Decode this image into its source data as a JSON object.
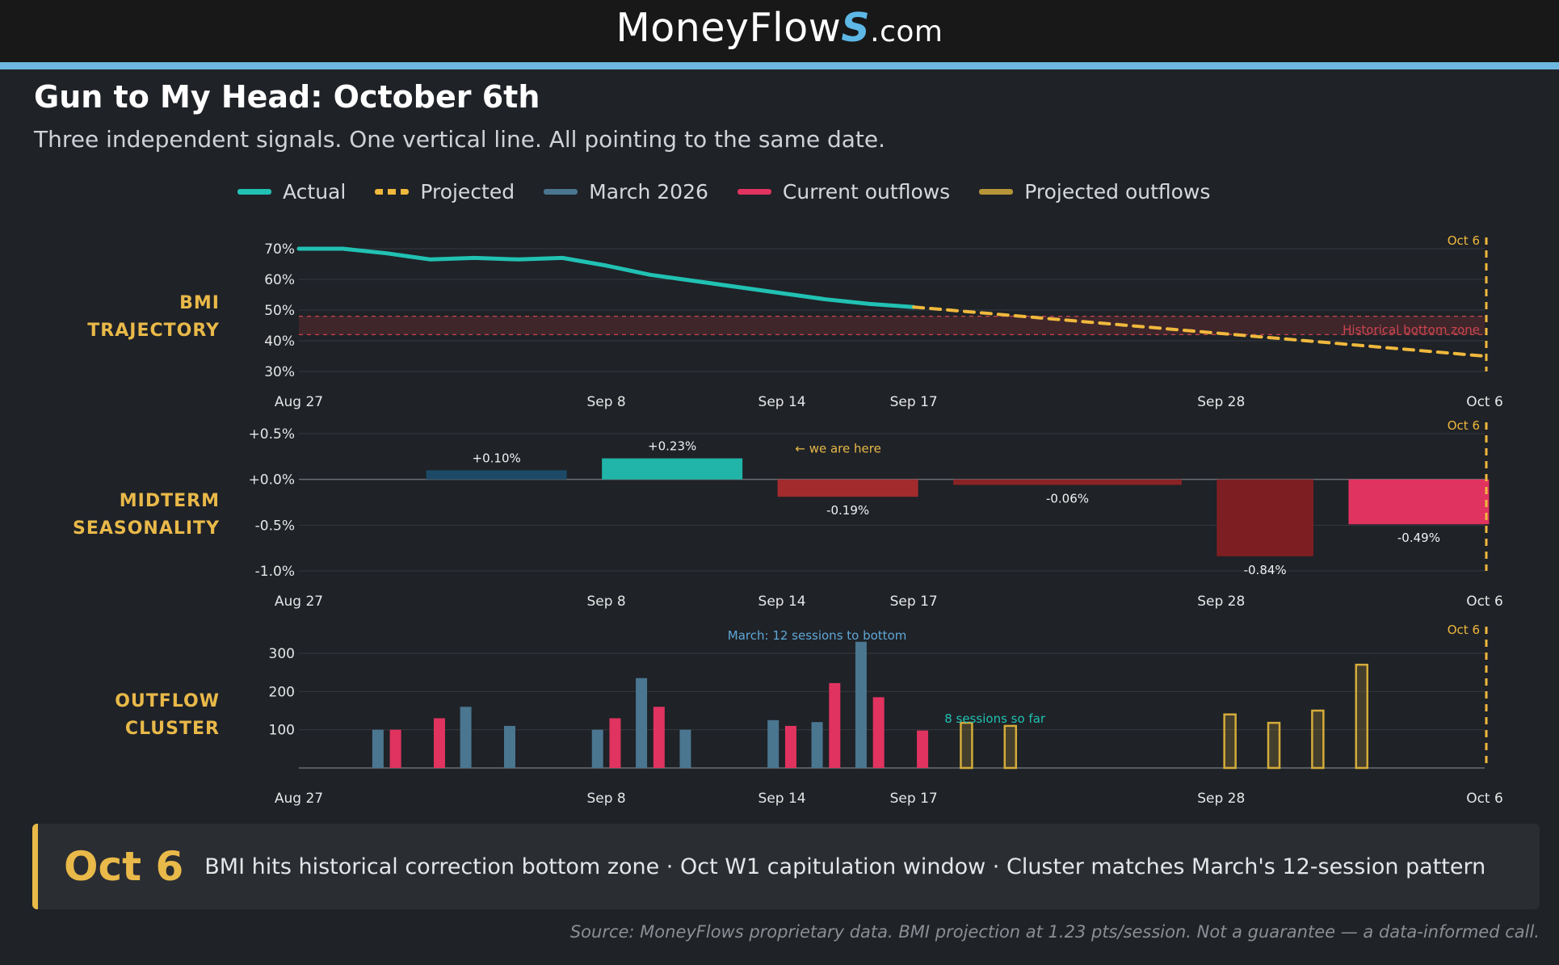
{
  "header": {
    "brand_name": "MoneyFlow",
    "brand_s": "S",
    "brand_tld": ".com",
    "accent_color": "#6db7e0"
  },
  "title": "Gun to My Head: October 6th",
  "subtitle": "Three independent signals. One vertical line. All pointing to the same date.",
  "legend": [
    {
      "label": "Actual",
      "color": "#21c1b3",
      "style": "solid"
    },
    {
      "label": "Projected",
      "color": "#f0b83c",
      "style": "dashed"
    },
    {
      "label": "March 2026",
      "color": "#4a7690",
      "style": "solid"
    },
    {
      "label": "Current outflows",
      "color": "#e0335f",
      "style": "solid"
    },
    {
      "label": "Projected outflows",
      "color": "#b5953a",
      "style": "solid"
    }
  ],
  "chart_data": [
    {
      "type": "line",
      "panel_label": [
        "BMI",
        "TRAJECTORY"
      ],
      "x_tick_labels": [
        "Aug 27",
        "Sep 8",
        "Sep 14",
        "Sep 17",
        "Sep 28",
        "Oct 6"
      ],
      "x_tick_positions": [
        0,
        7,
        11,
        14,
        21,
        27
      ],
      "ylim": [
        30,
        70
      ],
      "y_ticks": [
        70,
        60,
        50,
        40,
        30
      ],
      "y_tick_format": "percent",
      "grid": true,
      "series": [
        {
          "name": "Actual",
          "color": "#21c1b3",
          "x": [
            0,
            1,
            2,
            3,
            4,
            5,
            6,
            7,
            8,
            9,
            10,
            11,
            12,
            13,
            14
          ],
          "values": [
            70,
            70,
            68.5,
            66.5,
            67,
            66.5,
            67,
            64.5,
            61.5,
            59.5,
            57.5,
            55.5,
            53.5,
            52,
            51
          ]
        },
        {
          "name": "Projected",
          "color": "#f0b83c",
          "style": "dashed",
          "x": [
            14,
            27
          ],
          "values": [
            51,
            35
          ]
        }
      ],
      "band": {
        "from": 42,
        "to": 48,
        "label": "Historical bottom zone",
        "color": "#c9454f"
      },
      "marker": {
        "x": 27,
        "label": "Oct 6",
        "color": "#f0b83c"
      }
    },
    {
      "type": "bar",
      "panel_label": [
        "MIDTERM",
        "SEASONALITY"
      ],
      "x_tick_labels": [
        "Aug 27",
        "Sep 8",
        "Sep 14",
        "Sep 17",
        "Sep 28",
        "Oct 6"
      ],
      "x_tick_positions": [
        0,
        7,
        11,
        14,
        21,
        27
      ],
      "ylim": [
        -1.0,
        0.5
      ],
      "y_ticks": [
        0.5,
        0.0,
        -0.5,
        -1.0
      ],
      "y_tick_labels": [
        "+0.5%",
        "+0.0%",
        "-0.5%",
        "-1.0%"
      ],
      "grid": true,
      "bars": [
        {
          "x_start": 2.9,
          "x_end": 6.1,
          "value": 0.1,
          "label": "+0.10%",
          "color": "#1c4a66"
        },
        {
          "x_start": 6.9,
          "x_end": 10.1,
          "value": 0.23,
          "label": "+0.23%",
          "color": "#20b5a8"
        },
        {
          "x_start": 10.9,
          "x_end": 14.1,
          "value": -0.19,
          "label": "-0.19%",
          "color": "#a32b2e"
        },
        {
          "x_start": 14.9,
          "x_end": 20.1,
          "value": -0.06,
          "label": "-0.06%",
          "color": "#8a2326"
        },
        {
          "x_start": 20.9,
          "x_end": 23.1,
          "value": -0.84,
          "label": "-0.84%",
          "color": "#7d1f22"
        },
        {
          "x_start": 23.9,
          "x_end": 27.1,
          "value": -0.49,
          "label": "-0.49%",
          "color": "#e0335f"
        }
      ],
      "annotation": {
        "text": "← we are here",
        "color": "#e9b949"
      },
      "marker": {
        "x": 27,
        "label": "Oct 6",
        "color": "#f0b83c"
      }
    },
    {
      "type": "bar",
      "panel_label": [
        "OUTFLOW",
        "CLUSTER"
      ],
      "x_tick_labels": [
        "Aug 27",
        "Sep 8",
        "Sep 14",
        "Sep 17",
        "Sep 28",
        "Oct 6"
      ],
      "x_tick_positions": [
        0,
        7,
        11,
        14,
        21,
        27
      ],
      "ylim": [
        0,
        340
      ],
      "y_ticks": [
        300,
        200,
        100
      ],
      "grid": true,
      "series": [
        {
          "name": "March 2026",
          "color": "#4a7690",
          "x": [
            1.8,
            3.8,
            4.8,
            6.8,
            7.8,
            8.8,
            10.8,
            11.8,
            12.8
          ],
          "values": [
            100,
            160,
            110,
            100,
            235,
            100,
            125,
            120,
            330
          ]
        },
        {
          "name": "Current outflows",
          "color": "#e0335f",
          "x": [
            2.2,
            3.2,
            7.2,
            8.2,
            11.2,
            12.2,
            13.2,
            14.2
          ],
          "values": [
            100,
            130,
            130,
            160,
            110,
            222,
            185,
            98
          ]
        },
        {
          "name": "Projected outflows",
          "color": "#b5953a",
          "x": [
            15.2,
            16.2,
            21.2,
            22.2,
            23.2,
            24.2
          ],
          "values": [
            118,
            110,
            140,
            118,
            150,
            270
          ]
        }
      ],
      "annotations": [
        {
          "text": "March: 12 sessions to bottom",
          "color": "#5fa7d6"
        },
        {
          "text": "8 sessions so far",
          "color": "#21c1b3"
        }
      ],
      "marker": {
        "x": 27,
        "label": "Oct 6",
        "color": "#f0b83c"
      }
    }
  ],
  "callout": {
    "date": "Oct 6",
    "text": "BMI hits historical correction bottom zone  ·  Oct W1 capitulation window  ·  Cluster matches March's 12-session pattern"
  },
  "source": "Source: MoneyFlows proprietary data. BMI projection at 1.23 pts/session. Not a guarantee — a data-informed call."
}
